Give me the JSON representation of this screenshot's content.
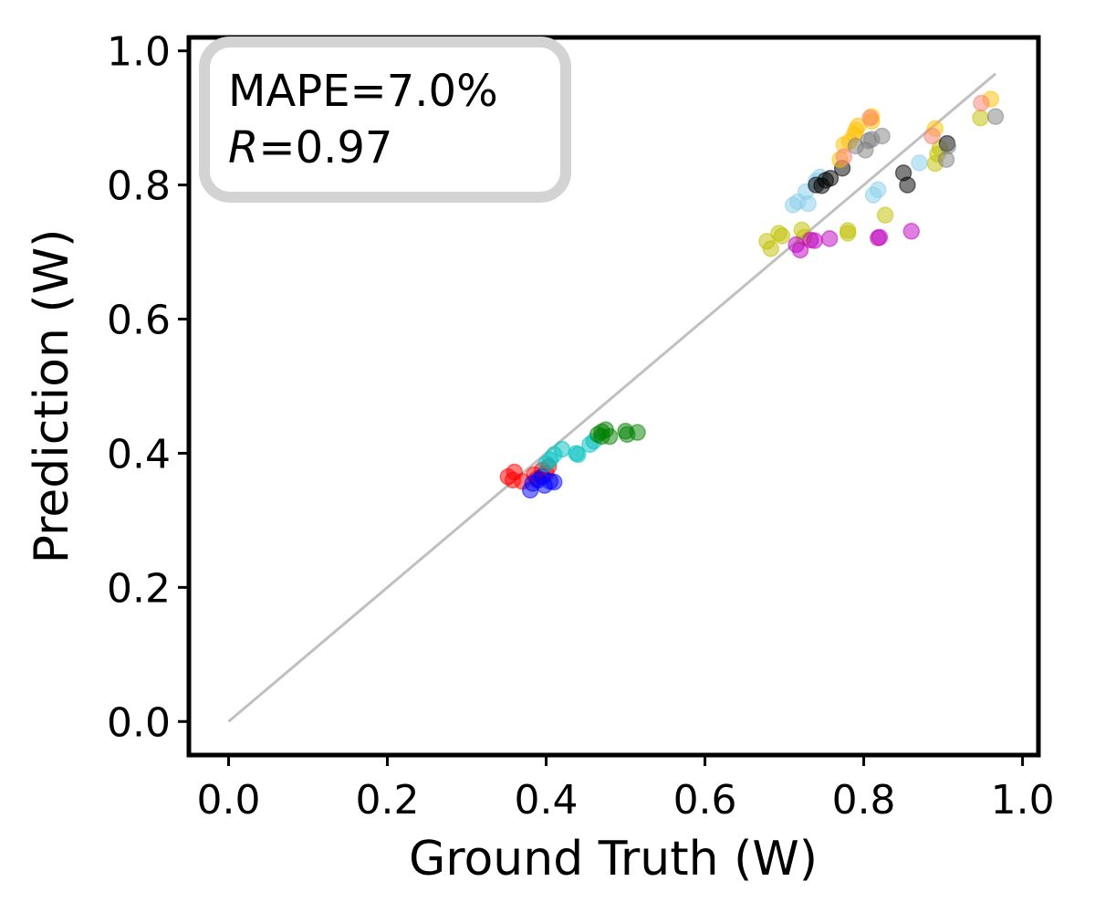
{
  "chart_data": {
    "type": "scatter",
    "xlabel": "Ground Truth (W)",
    "ylabel": "Prediction (W)",
    "xlim": [
      -0.05,
      1.02
    ],
    "ylim": [
      -0.05,
      1.02
    ],
    "xticks": [
      "0.0",
      "0.2",
      "0.4",
      "0.6",
      "0.8",
      "1.0"
    ],
    "yticks": [
      "0.0",
      "0.2",
      "0.4",
      "0.6",
      "0.8",
      "1.0"
    ],
    "annotation": {
      "mape": "MAPE=7.0%",
      "r_symbol": "R",
      "r_value": "=0.97",
      "placement": "top-left"
    },
    "reference_line": {
      "x": [
        0,
        0.966
      ],
      "y": [
        0,
        0.966
      ],
      "color": "#c0c0c0"
    },
    "series": [
      {
        "name": "red",
        "color": "#ff0000",
        "points": [
          [
            0.352,
            0.365
          ],
          [
            0.358,
            0.36
          ],
          [
            0.36,
            0.372
          ],
          [
            0.37,
            0.358
          ],
          [
            0.385,
            0.368
          ],
          [
            0.395,
            0.375
          ],
          [
            0.4,
            0.37
          ],
          [
            0.403,
            0.38
          ],
          [
            0.388,
            0.362
          ]
        ]
      },
      {
        "name": "blue",
        "color": "#0000ff",
        "points": [
          [
            0.38,
            0.345
          ],
          [
            0.383,
            0.355
          ],
          [
            0.39,
            0.36
          ],
          [
            0.398,
            0.352
          ],
          [
            0.405,
            0.358
          ],
          [
            0.41,
            0.357
          ],
          [
            0.395,
            0.365
          ]
        ]
      },
      {
        "name": "cyan",
        "color": "#00c0c0",
        "points": [
          [
            0.405,
            0.39
          ],
          [
            0.41,
            0.398
          ],
          [
            0.42,
            0.406
          ],
          [
            0.438,
            0.4
          ],
          [
            0.44,
            0.398
          ],
          [
            0.455,
            0.413
          ],
          [
            0.46,
            0.418
          ],
          [
            0.4,
            0.384
          ]
        ]
      },
      {
        "name": "green",
        "color": "#008000",
        "points": [
          [
            0.465,
            0.428
          ],
          [
            0.47,
            0.432
          ],
          [
            0.475,
            0.435
          ],
          [
            0.48,
            0.425
          ],
          [
            0.5,
            0.433
          ],
          [
            0.502,
            0.428
          ],
          [
            0.515,
            0.431
          ],
          [
            0.47,
            0.425
          ]
        ]
      },
      {
        "name": "olive-yellow",
        "color": "#bfbf00",
        "points": [
          [
            0.678,
            0.716
          ],
          [
            0.683,
            0.705
          ],
          [
            0.693,
            0.728
          ],
          [
            0.697,
            0.724
          ],
          [
            0.722,
            0.733
          ],
          [
            0.725,
            0.722
          ],
          [
            0.78,
            0.732
          ],
          [
            0.78,
            0.728
          ],
          [
            0.827,
            0.755
          ],
          [
            0.89,
            0.832
          ],
          [
            0.893,
            0.846
          ],
          [
            0.896,
            0.855
          ],
          [
            0.947,
            0.9
          ]
        ]
      },
      {
        "name": "magenta",
        "color": "#c000c0",
        "points": [
          [
            0.715,
            0.711
          ],
          [
            0.72,
            0.703
          ],
          [
            0.733,
            0.718
          ],
          [
            0.738,
            0.717
          ],
          [
            0.757,
            0.72
          ],
          [
            0.818,
            0.721
          ],
          [
            0.82,
            0.722
          ],
          [
            0.86,
            0.731
          ]
        ]
      },
      {
        "name": "skyblue",
        "color": "#87ceeb",
        "points": [
          [
            0.711,
            0.77
          ],
          [
            0.717,
            0.775
          ],
          [
            0.73,
            0.772
          ],
          [
            0.727,
            0.79
          ],
          [
            0.74,
            0.806
          ],
          [
            0.745,
            0.812
          ],
          [
            0.812,
            0.785
          ],
          [
            0.818,
            0.793
          ],
          [
            0.87,
            0.833
          ]
        ]
      },
      {
        "name": "black",
        "color": "#000000",
        "points": [
          [
            0.74,
            0.8
          ],
          [
            0.747,
            0.799
          ],
          [
            0.752,
            0.807
          ],
          [
            0.758,
            0.81
          ],
          [
            0.773,
            0.825
          ],
          [
            0.85,
            0.818
          ],
          [
            0.855,
            0.8
          ],
          [
            0.905,
            0.862
          ]
        ]
      },
      {
        "name": "gold",
        "color": "#ffc000",
        "points": [
          [
            0.77,
            0.838
          ],
          [
            0.775,
            0.86
          ],
          [
            0.782,
            0.865
          ],
          [
            0.788,
            0.875
          ],
          [
            0.79,
            0.882
          ],
          [
            0.793,
            0.888
          ],
          [
            0.81,
            0.902
          ],
          [
            0.81,
            0.895
          ],
          [
            0.89,
            0.884
          ],
          [
            0.96,
            0.928
          ]
        ]
      },
      {
        "name": "salmon",
        "color": "#fa8072",
        "points": [
          [
            0.775,
            0.842
          ],
          [
            0.808,
            0.9
          ],
          [
            0.886,
            0.873
          ],
          [
            0.948,
            0.922
          ]
        ]
      },
      {
        "name": "gray",
        "color": "#808080",
        "points": [
          [
            0.79,
            0.858
          ],
          [
            0.802,
            0.852
          ],
          [
            0.806,
            0.866
          ],
          [
            0.81,
            0.868
          ],
          [
            0.823,
            0.873
          ],
          [
            0.904,
            0.838
          ],
          [
            0.906,
            0.858
          ],
          [
            0.966,
            0.902
          ]
        ]
      }
    ]
  }
}
